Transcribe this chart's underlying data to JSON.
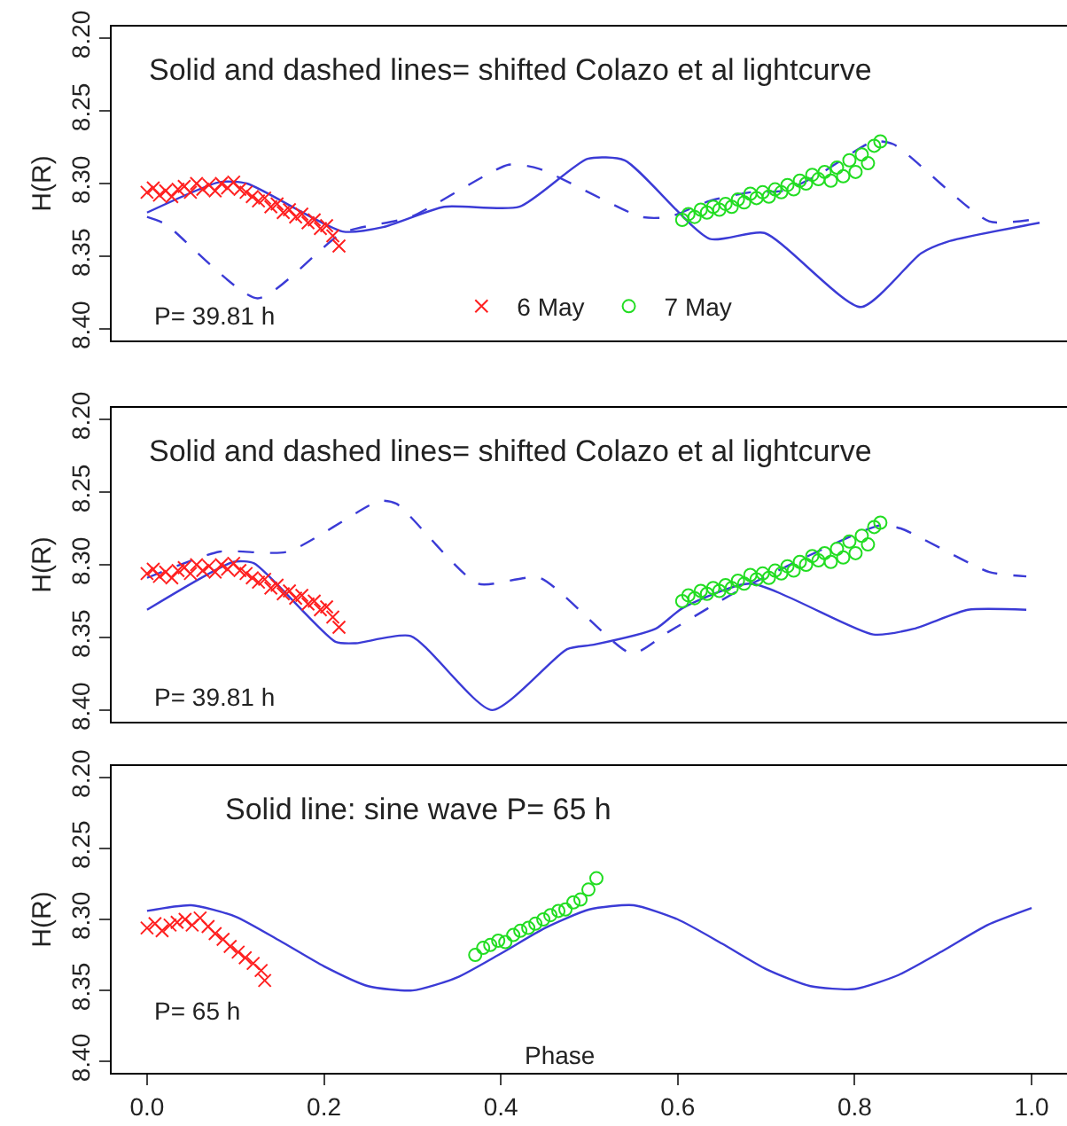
{
  "chart_data": [
    {
      "type": "scatter",
      "title": "Solid and dashed lines= shifted Colazo et al lightcurve",
      "ylabel": "H(R)",
      "annotations": [
        "P= 39.81 h"
      ],
      "xlim": [
        -0.04,
        1.04
      ],
      "ylim": [
        8.408,
        8.192
      ],
      "yticks": [
        {
          "value": 8.2,
          "label": "8.20"
        },
        {
          "value": 8.25,
          "label": "8.25"
        },
        {
          "value": 8.3,
          "label": "8.30"
        },
        {
          "value": 8.35,
          "label": "8.35"
        },
        {
          "value": 8.4,
          "label": "8.40"
        }
      ],
      "tick_labels": "y",
      "legend": "bottom",
      "series": [
        {
          "type": "line",
          "color": "#3b3bd6",
          "line_style": "solid",
          "marker": "none",
          "x": [
            0,
            0.082,
            0.113,
            0.221,
            0.267,
            0.336,
            0.421,
            0.498,
            0.54,
            0.636,
            0.698,
            0.807,
            0.875,
            0.905,
            1.009
          ],
          "values": [
            8.32,
            8.299,
            8.3,
            8.333,
            8.33,
            8.316,
            8.316,
            8.283,
            8.284,
            8.338,
            8.334,
            8.385,
            8.348,
            8.34,
            8.327
          ]
        },
        {
          "type": "line",
          "color": "#3b3bd6",
          "line_style": "dashed",
          "marker": "none",
          "x": [
            0,
            0.021,
            0.125,
            0.221,
            0.298,
            0.409,
            0.444,
            0.559,
            0.59,
            0.636,
            0.682,
            0.72,
            0.759,
            0.821,
            0.844,
            0.952,
            1.009
          ],
          "values": [
            8.323,
            8.328,
            8.379,
            8.334,
            8.323,
            8.287,
            8.29,
            8.323,
            8.323,
            8.312,
            8.306,
            8.305,
            8.294,
            8.271,
            8.273,
            8.326,
            8.324
          ]
        },
        {
          "name": "6 May",
          "color": "#ff2020",
          "marker": "cross",
          "x": [
            0.0,
            0.007,
            0.014,
            0.021,
            0.028,
            0.035,
            0.042,
            0.049,
            0.056,
            0.063,
            0.07,
            0.077,
            0.084,
            0.091,
            0.098,
            0.105,
            0.112,
            0.119,
            0.126,
            0.133,
            0.14,
            0.147,
            0.154,
            0.161,
            0.168,
            0.175,
            0.182,
            0.189,
            0.196,
            0.203,
            0.21,
            0.217
          ],
          "values": [
            8.306,
            8.303,
            8.308,
            8.305,
            8.309,
            8.304,
            8.302,
            8.306,
            8.3,
            8.304,
            8.301,
            8.305,
            8.3,
            8.303,
            8.299,
            8.304,
            8.306,
            8.309,
            8.312,
            8.31,
            8.316,
            8.314,
            8.32,
            8.318,
            8.323,
            8.321,
            8.327,
            8.325,
            8.331,
            8.329,
            8.336,
            8.343
          ]
        },
        {
          "name": "7 May",
          "color": "#22dd22",
          "marker": "circle",
          "x": [
            0.605,
            0.612,
            0.619,
            0.626,
            0.633,
            0.64,
            0.647,
            0.654,
            0.661,
            0.668,
            0.675,
            0.682,
            0.689,
            0.696,
            0.703,
            0.71,
            0.717,
            0.724,
            0.731,
            0.738,
            0.745,
            0.752,
            0.759,
            0.766,
            0.773,
            0.78,
            0.787,
            0.794,
            0.801,
            0.808,
            0.815,
            0.822,
            0.829
          ],
          "values": [
            8.325,
            8.321,
            8.323,
            8.318,
            8.32,
            8.316,
            8.318,
            8.314,
            8.316,
            8.311,
            8.313,
            8.307,
            8.31,
            8.306,
            8.309,
            8.304,
            8.306,
            8.301,
            8.304,
            8.298,
            8.3,
            8.294,
            8.297,
            8.292,
            8.298,
            8.289,
            8.295,
            8.284,
            8.292,
            8.28,
            8.286,
            8.274,
            8.271
          ]
        }
      ]
    },
    {
      "type": "scatter",
      "title": "Solid and dashed lines= shifted Colazo et al lightcurve",
      "ylabel": "H(R)",
      "annotations": [
        "P= 39.81 h"
      ],
      "xlim": [
        -0.04,
        1.04
      ],
      "ylim": [
        8.408,
        8.192
      ],
      "yticks": [
        {
          "value": 8.2,
          "label": "8.20"
        },
        {
          "value": 8.25,
          "label": "8.25"
        },
        {
          "value": 8.3,
          "label": "8.30"
        },
        {
          "value": 8.35,
          "label": "8.35"
        },
        {
          "value": 8.4,
          "label": "8.40"
        }
      ],
      "tick_labels": "y",
      "series": [
        {
          "type": "line",
          "color": "#3b3bd6",
          "line_style": "solid",
          "marker": "none",
          "x": [
            0,
            0.098,
            0.121,
            0.213,
            0.236,
            0.298,
            0.39,
            0.475,
            0.505,
            0.575,
            0.605,
            0.682,
            0.821,
            0.867,
            0.928,
            0.994
          ],
          "values": [
            8.331,
            8.298,
            8.299,
            8.353,
            8.354,
            8.349,
            8.4,
            8.358,
            8.355,
            8.344,
            8.33,
            8.313,
            8.348,
            8.344,
            8.331,
            8.331
          ]
        },
        {
          "type": "line",
          "color": "#3b3bd6",
          "line_style": "dashed",
          "marker": "none",
          "x": [
            0,
            0.082,
            0.159,
            0.263,
            0.282,
            0.374,
            0.444,
            0.548,
            0.59,
            0.674,
            0.828,
            0.852,
            0.952,
            0.994
          ],
          "values": [
            8.309,
            8.291,
            8.291,
            8.256,
            8.258,
            8.313,
            8.309,
            8.361,
            8.346,
            8.316,
            8.273,
            8.275,
            8.305,
            8.308
          ]
        },
        {
          "color": "#ff2020",
          "marker": "cross",
          "x": [
            0.0,
            0.007,
            0.014,
            0.021,
            0.028,
            0.035,
            0.042,
            0.049,
            0.056,
            0.063,
            0.07,
            0.077,
            0.084,
            0.091,
            0.098,
            0.105,
            0.112,
            0.119,
            0.126,
            0.133,
            0.14,
            0.147,
            0.154,
            0.161,
            0.168,
            0.175,
            0.182,
            0.189,
            0.196,
            0.203,
            0.21,
            0.217
          ],
          "values": [
            8.306,
            8.303,
            8.308,
            8.305,
            8.309,
            8.304,
            8.302,
            8.306,
            8.3,
            8.304,
            8.301,
            8.305,
            8.3,
            8.303,
            8.299,
            8.304,
            8.306,
            8.309,
            8.312,
            8.31,
            8.316,
            8.314,
            8.32,
            8.318,
            8.323,
            8.321,
            8.327,
            8.325,
            8.331,
            8.329,
            8.336,
            8.343
          ]
        },
        {
          "color": "#22dd22",
          "marker": "circle",
          "x": [
            0.605,
            0.612,
            0.619,
            0.626,
            0.633,
            0.64,
            0.647,
            0.654,
            0.661,
            0.668,
            0.675,
            0.682,
            0.689,
            0.696,
            0.703,
            0.71,
            0.717,
            0.724,
            0.731,
            0.738,
            0.745,
            0.752,
            0.759,
            0.766,
            0.773,
            0.78,
            0.787,
            0.794,
            0.801,
            0.808,
            0.815,
            0.822,
            0.829
          ],
          "values": [
            8.325,
            8.321,
            8.323,
            8.318,
            8.32,
            8.316,
            8.318,
            8.314,
            8.316,
            8.311,
            8.313,
            8.307,
            8.31,
            8.306,
            8.309,
            8.304,
            8.306,
            8.301,
            8.304,
            8.298,
            8.3,
            8.294,
            8.297,
            8.292,
            8.298,
            8.289,
            8.295,
            8.284,
            8.292,
            8.28,
            8.286,
            8.274,
            8.271
          ]
        }
      ]
    },
    {
      "type": "scatter",
      "title": "Solid line: sine wave P= 65 h",
      "xlabel": "Phase",
      "ylabel": "H(R)",
      "annotations": [
        "P= 65 h"
      ],
      "xlim": [
        -0.04,
        1.04
      ],
      "xticks": [
        {
          "value": 0,
          "label": "0.0"
        },
        {
          "value": 0.2,
          "label": "0.2"
        },
        {
          "value": 0.4,
          "label": "0.4"
        },
        {
          "value": 0.6,
          "label": "0.6"
        },
        {
          "value": 0.8,
          "label": "0.8"
        },
        {
          "value": 1,
          "label": "1.0"
        }
      ],
      "ylim": [
        8.408,
        8.192
      ],
      "yticks": [
        {
          "value": 8.2,
          "label": "8.20"
        },
        {
          "value": 8.25,
          "label": "8.25"
        },
        {
          "value": 8.3,
          "label": "8.30"
        },
        {
          "value": 8.35,
          "label": "8.35"
        },
        {
          "value": 8.4,
          "label": "8.40"
        }
      ],
      "series": [
        {
          "type": "line",
          "color": "#3b3bd6",
          "line_style": "solid",
          "marker": "none",
          "x": [
            0,
            0.05,
            0.1,
            0.15,
            0.2,
            0.25,
            0.3,
            0.35,
            0.4,
            0.45,
            0.5,
            0.55,
            0.6,
            0.65,
            0.7,
            0.75,
            0.8,
            0.85,
            0.9,
            0.95,
            1.0
          ],
          "values": [
            8.294,
            8.29,
            8.298,
            8.315,
            8.333,
            8.347,
            8.35,
            8.341,
            8.324,
            8.306,
            8.293,
            8.29,
            8.3,
            8.317,
            8.335,
            8.347,
            8.349,
            8.339,
            8.322,
            8.304,
            8.292
          ]
        },
        {
          "color": "#ff2020",
          "marker": "cross",
          "x": [
            0.0,
            0.009,
            0.017,
            0.026,
            0.034,
            0.043,
            0.051,
            0.06,
            0.069,
            0.077,
            0.086,
            0.094,
            0.103,
            0.111,
            0.12,
            0.129,
            0.133
          ],
          "values": [
            8.306,
            8.303,
            8.308,
            8.304,
            8.302,
            8.3,
            8.304,
            8.299,
            8.305,
            8.31,
            8.314,
            8.319,
            8.323,
            8.327,
            8.331,
            8.336,
            8.343
          ]
        },
        {
          "color": "#22dd22",
          "marker": "circle",
          "x": [
            0.371,
            0.38,
            0.388,
            0.397,
            0.405,
            0.414,
            0.422,
            0.431,
            0.439,
            0.448,
            0.456,
            0.465,
            0.473,
            0.482,
            0.49,
            0.499,
            0.508
          ],
          "values": [
            8.325,
            8.32,
            8.318,
            8.315,
            8.316,
            8.311,
            8.308,
            8.306,
            8.303,
            8.3,
            8.297,
            8.294,
            8.293,
            8.288,
            8.286,
            8.279,
            8.271
          ]
        }
      ]
    }
  ]
}
